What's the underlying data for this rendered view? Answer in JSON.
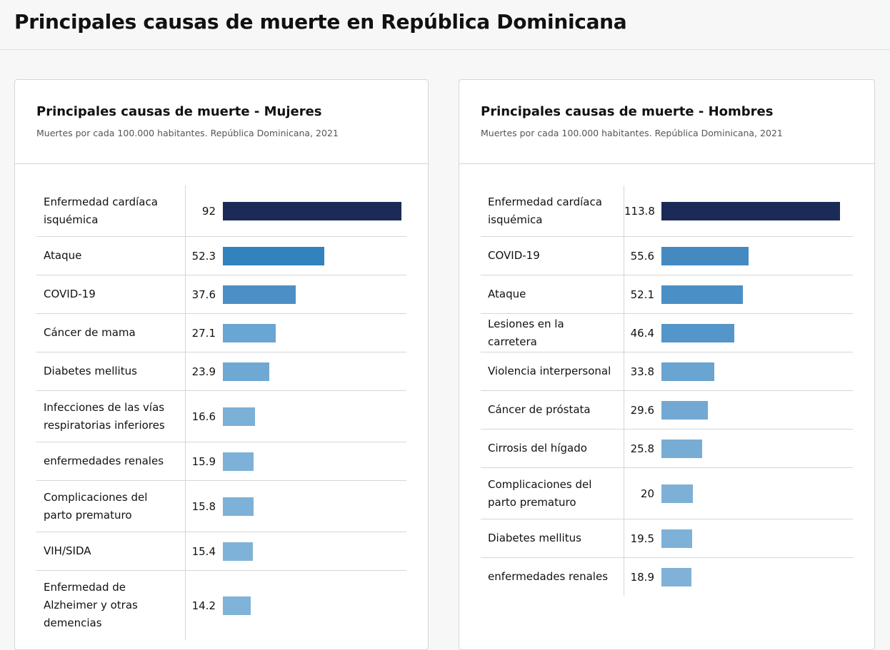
{
  "page_title": "Principales causas de muerte en República Dominicana",
  "chart_data": [
    {
      "type": "bar",
      "title": "Principales causas de muerte - Mujeres",
      "subtitle": "Muertes por cada 100.000 habitantes. República Dominicana, 2021",
      "categories": [
        "Enfermedad cardíaca isquémica",
        "Ataque",
        "COVID-19",
        "Cáncer de mama",
        "Diabetes mellitus",
        "Infecciones de las vías respiratorias inferiores",
        "enfermedades renales",
        "Complicaciones del parto prematuro",
        "VIH/SIDA",
        "Enfermedad de Alzheimer y otras demencias"
      ],
      "values": [
        92,
        52.3,
        37.6,
        27.1,
        23.9,
        16.6,
        15.9,
        15.8,
        15.4,
        14.2
      ],
      "colors": [
        "#1b2a57",
        "#3182bd",
        "#4c8fc6",
        "#6aa6d3",
        "#6ea8d3",
        "#7bb0d7",
        "#7db1d8",
        "#7db1d8",
        "#7eb2d8",
        "#80b3d8"
      ]
    },
    {
      "type": "bar",
      "title": "Principales causas de muerte - Hombres",
      "subtitle": "Muertes por cada 100.000 habitantes. República Dominicana, 2021",
      "categories": [
        "Enfermedad cardíaca isquémica",
        "COVID-19",
        "Ataque",
        "Lesiones en la carretera",
        "Violencia interpersonal",
        "Cáncer de próstata",
        "Cirrosis del hígado",
        "Complicaciones del parto prematuro",
        "Diabetes mellitus",
        "enfermedades renales"
      ],
      "values": [
        113.8,
        55.6,
        52.1,
        46.4,
        33.8,
        29.6,
        25.8,
        20,
        19.5,
        18.9
      ],
      "colors": [
        "#1b2a57",
        "#4589c1",
        "#4a8fc5",
        "#5496c9",
        "#6aa4d1",
        "#72a9d4",
        "#77acd5",
        "#7db0d7",
        "#7eb1d7",
        "#80b2d8"
      ]
    }
  ]
}
